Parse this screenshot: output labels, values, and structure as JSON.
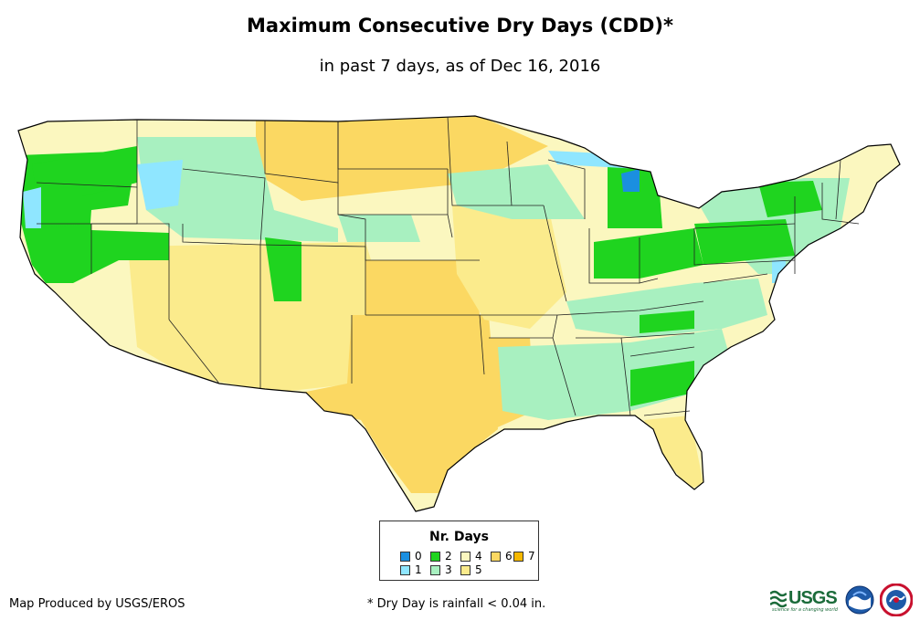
{
  "title": "Maximum Consecutive Dry Days (CDD)*",
  "subtitle": "in past 7 days, as of Dec 16, 2016",
  "legend": {
    "title": "Nr. Days",
    "items": [
      {
        "label": "0",
        "color": "#1b8fe0"
      },
      {
        "label": "1",
        "color": "#8fe6ff"
      },
      {
        "label": "2",
        "color": "#1fd41f"
      },
      {
        "label": "3",
        "color": "#a8f0c0"
      },
      {
        "label": "4",
        "color": "#fbf7bf"
      },
      {
        "label": "5",
        "color": "#fbeb8c"
      },
      {
        "label": "6",
        "color": "#fbd862"
      },
      {
        "label": "7",
        "color": "#f5b800"
      }
    ]
  },
  "credit": "Map Produced by USGS/EROS",
  "footnote": "* Dry Day is rainfall < 0.04 in.",
  "logos": {
    "usgs": "USGS",
    "usgs_tagline": "science for a changing world"
  }
}
